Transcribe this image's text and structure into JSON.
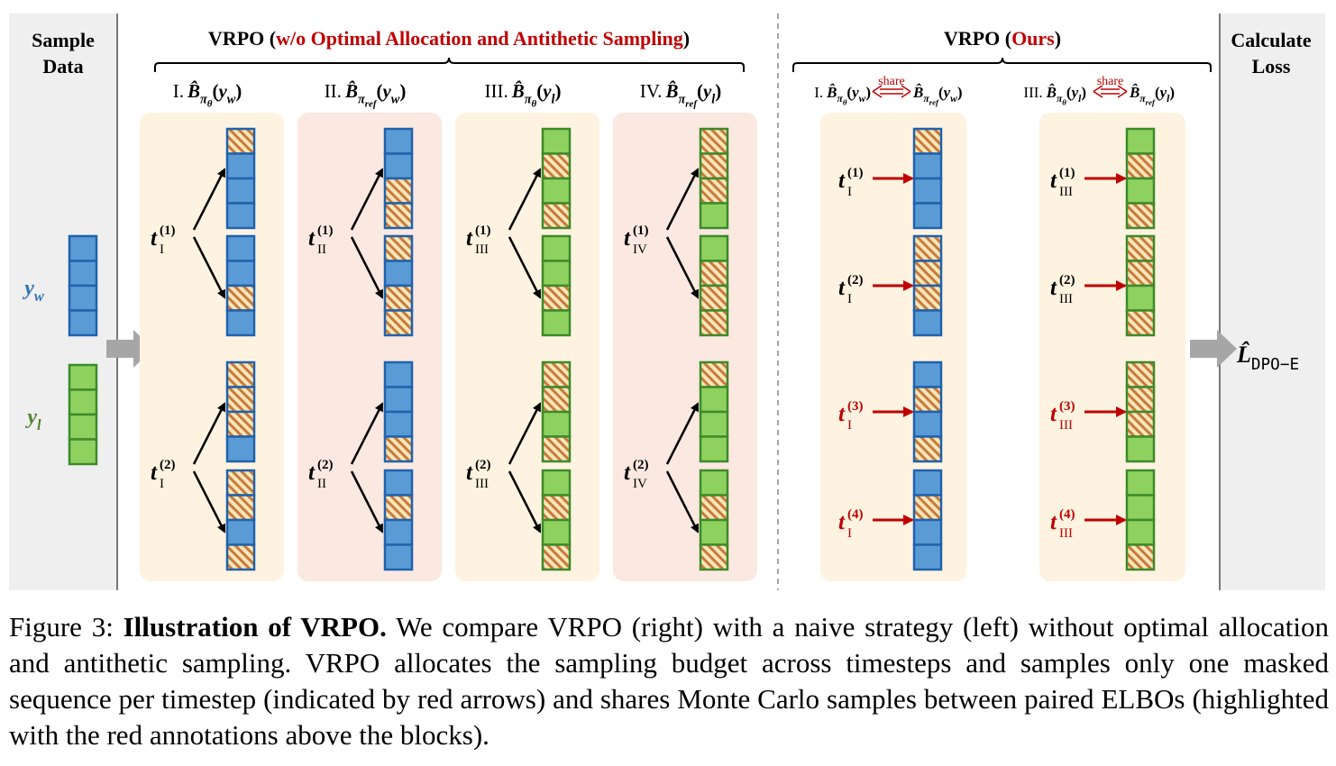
{
  "sample_data": {
    "title_lines": [
      "Sample",
      "Data"
    ],
    "yw": {
      "var": "y",
      "sub": "w"
    },
    "yl": {
      "var": "y",
      "sub": "l"
    }
  },
  "baseline": {
    "title": {
      "lead": "VRPO (",
      "highlight": "w/o Optimal Allocation and Antithetic Sampling",
      "tail": ")"
    },
    "columns": [
      {
        "numeral": "I.",
        "estimator": "B̂",
        "policy": {
          "main": "π",
          "sub": "θ"
        },
        "arg": {
          "open": "(",
          "var": "y",
          "sub": "w",
          "close": ")"
        },
        "timestep_sub": "I",
        "timesteps": [
          "(1)",
          "(2)"
        ]
      },
      {
        "numeral": "II.",
        "estimator": "B̂",
        "policy": {
          "main": "π",
          "sub": "ref"
        },
        "arg": {
          "open": "(",
          "var": "y",
          "sub": "w",
          "close": ")"
        },
        "timestep_sub": "II",
        "timesteps": [
          "(1)",
          "(2)"
        ]
      },
      {
        "numeral": "III.",
        "estimator": "B̂",
        "policy": {
          "main": "π",
          "sub": "θ"
        },
        "arg": {
          "open": "(",
          "var": "y",
          "sub": "l",
          "close": ")"
        },
        "timestep_sub": "III",
        "timesteps": [
          "(1)",
          "(2)"
        ]
      },
      {
        "numeral": "IV.",
        "estimator": "B̂",
        "policy": {
          "main": "π",
          "sub": "ref"
        },
        "arg": {
          "open": "(",
          "var": "y",
          "sub": "l",
          "close": ")"
        },
        "timestep_sub": "IV",
        "timesteps": [
          "(1)",
          "(2)"
        ]
      }
    ]
  },
  "vrpo": {
    "title": {
      "lead": "VRPO (",
      "highlight": "Ours",
      "tail": ")"
    },
    "pairs": [
      {
        "numeral": "I.",
        "estimator": "B̂",
        "left_policy": {
          "main": "π",
          "sub": "θ"
        },
        "right_policy": {
          "main": "π",
          "sub": "ref"
        },
        "share": "share",
        "arg": {
          "open": "(",
          "var": "y",
          "sub": "w",
          "close": ")"
        },
        "timestep_sub": "I",
        "timesteps": [
          "(1)",
          "(2)",
          "(3)",
          "(4)"
        ]
      },
      {
        "numeral": "III.",
        "estimator": "B̂",
        "left_policy": {
          "main": "π",
          "sub": "θ"
        },
        "right_policy": {
          "main": "π",
          "sub": "ref"
        },
        "share": "share",
        "arg": {
          "open": "(",
          "var": "y",
          "sub": "l",
          "close": ")"
        },
        "timestep_sub": "III",
        "timesteps": [
          "(1)",
          "(2)",
          "(3)",
          "(4)"
        ]
      }
    ]
  },
  "loss": {
    "title_lines": [
      "Calculate",
      "Loss"
    ],
    "symbol": "L̂",
    "sub": "DPO−E"
  },
  "caption": {
    "label": "Figure 3:",
    "bold": "Illustration of VRPO.",
    "text": "We compare VRPO (right) with a naive strategy (left) without optimal allocation and antithetic sampling. VRPO allocates the sampling budget across timesteps and samples only one masked sequence per timestep (indicated by red arrows) and shares Monte Carlo samples between paired ELBOs (highlighted with the red annotations above the blocks)."
  }
}
